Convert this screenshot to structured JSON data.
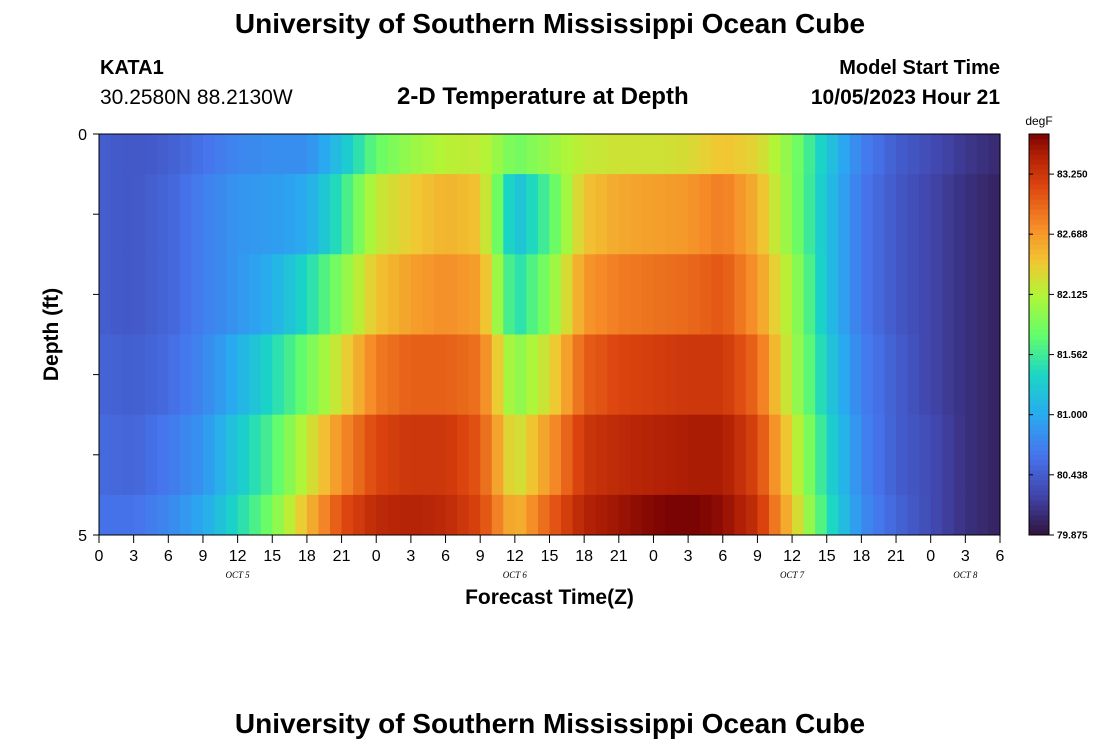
{
  "header": {
    "title": "University of Southern Mississippi Ocean Cube",
    "station_id": "KATA1",
    "coords": "30.2580N  88.2130W",
    "subtitle": "2-D Temperature at Depth",
    "model_label": "Model Start Time",
    "model_time": "10/05/2023 Hour 21"
  },
  "footer": {
    "title": "University of Southern Mississippi Ocean Cube"
  },
  "chart_data": {
    "type": "heatmap",
    "xlabel": "Forecast Time(Z)",
    "ylabel": "Depth (ft)",
    "x_hours": [
      0,
      3,
      6,
      9,
      12,
      15,
      18,
      21,
      24,
      27,
      30,
      33,
      36,
      39,
      42,
      45,
      48,
      51,
      54,
      57,
      60,
      63,
      66,
      69,
      72,
      75,
      78
    ],
    "x_tick_labels": [
      "0",
      "3",
      "6",
      "9",
      "12",
      "15",
      "18",
      "21",
      "0",
      "3",
      "6",
      "9",
      "12",
      "15",
      "18",
      "21",
      "0",
      "3",
      "6",
      "9",
      "12",
      "15",
      "18",
      "21",
      "0",
      "3",
      "6"
    ],
    "day_labels": [
      {
        "hour": 12,
        "label": "OCT 5"
      },
      {
        "hour": 36,
        "label": "OCT 6"
      },
      {
        "hour": 60,
        "label": "OCT 7"
      },
      {
        "hour": 75,
        "label": "OCT 8"
      }
    ],
    "ylim": [
      0,
      5
    ],
    "y_tick_labels": [
      "0",
      "5"
    ],
    "depth_bands": [
      [
        0,
        0.5
      ],
      [
        0.5,
        1.5
      ],
      [
        1.5,
        2.5
      ],
      [
        2.5,
        3.5
      ],
      [
        3.5,
        4.5
      ],
      [
        4.5,
        5
      ]
    ],
    "colorbar": {
      "unit": "degF",
      "min": 79.875,
      "max": 83.625,
      "ticks": [
        "83.250",
        "82.688",
        "82.125",
        "81.562",
        "81.000",
        "80.438",
        "79.875"
      ],
      "tick_values": [
        83.25,
        82.688,
        82.125,
        81.562,
        81.0,
        80.438,
        79.875
      ]
    },
    "values": [
      [
        80.45,
        80.4,
        80.45,
        80.6,
        80.75,
        80.8,
        80.8,
        81.2,
        81.75,
        82.0,
        82.15,
        82.2,
        81.8,
        82.0,
        82.2,
        82.25,
        82.25,
        82.3,
        82.45,
        82.35,
        81.9,
        81.25,
        80.7,
        80.45,
        80.3,
        80.15,
        80.05
      ],
      [
        80.45,
        80.4,
        80.5,
        80.7,
        80.85,
        80.9,
        81.0,
        81.5,
        82.2,
        82.4,
        82.55,
        82.45,
        81.15,
        81.65,
        82.45,
        82.6,
        82.65,
        82.7,
        82.85,
        82.55,
        81.9,
        81.2,
        80.65,
        80.4,
        80.25,
        80.1,
        80.0
      ],
      [
        80.45,
        80.4,
        80.5,
        80.7,
        80.85,
        81.05,
        81.4,
        81.9,
        82.45,
        82.65,
        82.75,
        82.65,
        81.4,
        81.9,
        82.7,
        82.85,
        82.9,
        82.95,
        83.05,
        82.7,
        82.05,
        81.2,
        80.65,
        80.4,
        80.25,
        80.1,
        80.0
      ],
      [
        80.5,
        80.45,
        80.55,
        80.75,
        81.05,
        81.4,
        81.8,
        82.3,
        82.85,
        83.0,
        83.0,
        82.9,
        81.9,
        82.3,
        83.0,
        83.15,
        83.2,
        83.25,
        83.25,
        82.95,
        82.1,
        81.3,
        80.7,
        80.45,
        80.25,
        80.1,
        80.0
      ],
      [
        80.55,
        80.5,
        80.65,
        80.85,
        81.25,
        81.65,
        82.2,
        82.75,
        83.15,
        83.25,
        83.25,
        83.05,
        82.2,
        82.7,
        83.25,
        83.35,
        83.4,
        83.45,
        83.45,
        83.15,
        82.3,
        81.4,
        80.75,
        80.45,
        80.3,
        80.1,
        80.0
      ],
      [
        80.6,
        80.6,
        80.75,
        81.0,
        81.4,
        81.85,
        82.5,
        83.1,
        83.35,
        83.4,
        83.35,
        83.15,
        82.5,
        83.0,
        83.4,
        83.5,
        83.6,
        83.65,
        83.55,
        83.3,
        82.45,
        81.5,
        80.8,
        80.5,
        80.3,
        80.1,
        80.0
      ]
    ]
  }
}
